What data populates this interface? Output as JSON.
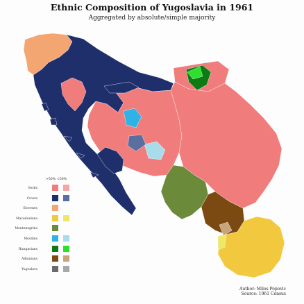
{
  "header": {
    "title": "Ethnic Composition of Yugoslavia in 1961",
    "subtitle": "Aggregated by absolute/simple majority"
  },
  "legend": {
    "absolute_label": ">50%",
    "simple_label": "<50%",
    "items": [
      {
        "label": "Serbs",
        "absolute_color": "#f07c7c",
        "simple_color": "#f4a7a7"
      },
      {
        "label": "Croats",
        "absolute_color": "#1e2f6b",
        "simple_color": "#5a6fa0"
      },
      {
        "label": "Slovenes",
        "absolute_color": "#f4a672",
        "simple_color": null
      },
      {
        "label": "Macedonians",
        "absolute_color": "#f2c93e",
        "simple_color": "#eee86a"
      },
      {
        "label": "Montenegrins",
        "absolute_color": "#6b8a3a",
        "simple_color": null
      },
      {
        "label": "Muslims",
        "absolute_color": "#2fb3e6",
        "simple_color": "#a9dcea"
      },
      {
        "label": "Hungarians",
        "absolute_color": "#0e7a14",
        "simple_color": "#2ee02e"
      },
      {
        "label": "Albanians",
        "absolute_color": "#7a4a12",
        "simple_color": "#c9a57a"
      },
      {
        "label": "Yugoslavs",
        "absolute_color": "#6b6b6b",
        "simple_color": "#a8a8a8"
      }
    ]
  },
  "credits": {
    "author": "Author: Milos Popovic",
    "source": "Source: 1961 Census"
  }
}
